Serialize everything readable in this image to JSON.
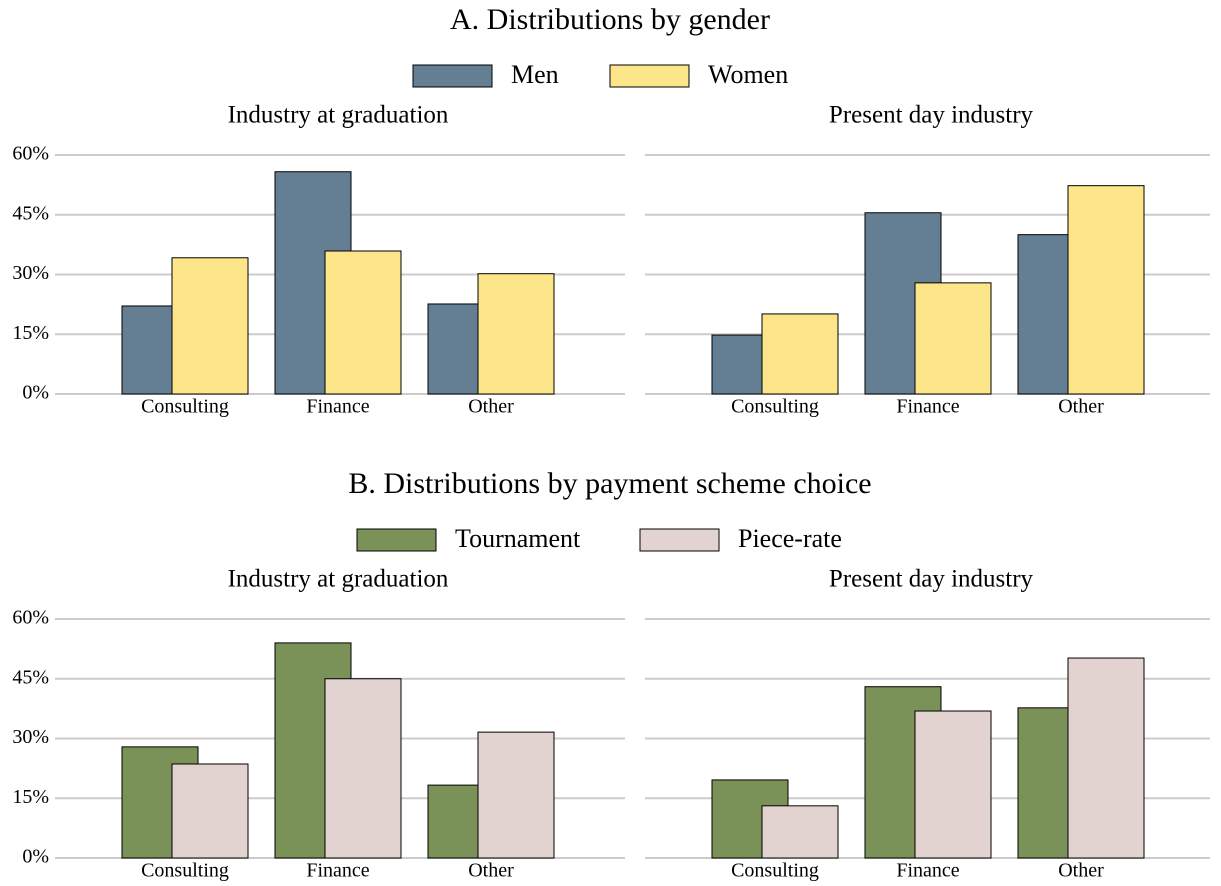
{
  "chart_data": [
    {
      "type": "bar",
      "title": "A. Distributions by gender",
      "categories": [
        "Consulting",
        "Finance",
        "Other"
      ],
      "series": [
        {
          "name": "Men",
          "color": "#647f94"
        },
        {
          "name": "Women",
          "color": "#fde68a"
        }
      ],
      "panels": [
        {
          "title": "Industry at graduation",
          "values": [
            [
              22.1,
              55.8,
              22.6
            ],
            [
              34.2,
              35.9,
              30.2
            ]
          ]
        },
        {
          "title": "Present day industry",
          "values": [
            [
              14.8,
              45.5,
              40.0
            ],
            [
              20.1,
              27.9,
              52.3
            ]
          ]
        }
      ],
      "ylim": [
        0,
        60
      ],
      "yticks": [
        {
          "value": 0,
          "label": "0%"
        },
        {
          "value": 15,
          "label": "15%"
        },
        {
          "value": 30,
          "label": "30%"
        },
        {
          "value": 45,
          "label": "45%"
        },
        {
          "value": 60,
          "label": "60%"
        }
      ],
      "grid": true
    },
    {
      "type": "bar",
      "title": "B. Distributions by payment scheme choice",
      "categories": [
        "Consulting",
        "Finance",
        "Other"
      ],
      "series": [
        {
          "name": "Tournament",
          "color": "#7a9157"
        },
        {
          "name": "Piece-rate",
          "color": "#e2d3d0"
        }
      ],
      "panels": [
        {
          "title": "Industry at graduation",
          "values": [
            [
              27.9,
              54.0,
              18.3
            ],
            [
              23.6,
              45.0,
              31.6
            ]
          ]
        },
        {
          "title": "Present day industry",
          "values": [
            [
              19.6,
              43.0,
              37.7
            ],
            [
              13.1,
              36.9,
              50.2
            ]
          ]
        }
      ],
      "ylim": [
        0,
        60
      ],
      "yticks": [
        {
          "value": 0,
          "label": "0%"
        },
        {
          "value": 15,
          "label": "15%"
        },
        {
          "value": 30,
          "label": "30%"
        },
        {
          "value": 45,
          "label": "45%"
        },
        {
          "value": 60,
          "label": "60%"
        }
      ],
      "grid": true
    }
  ]
}
